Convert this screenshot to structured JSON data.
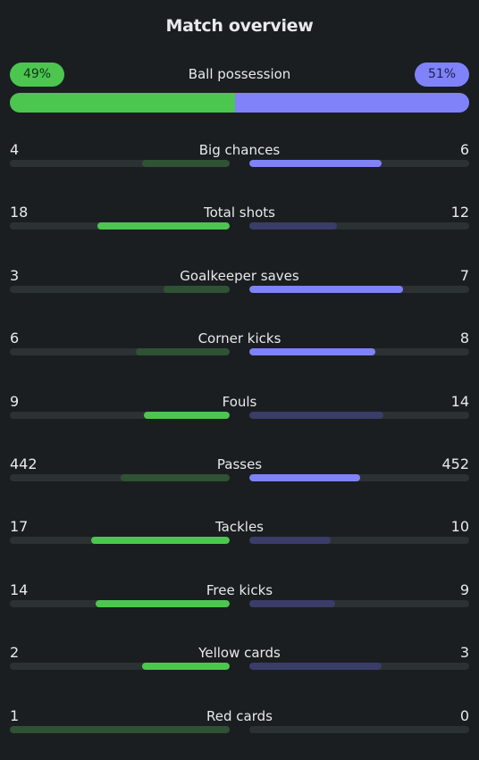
{
  "title": "Match overview",
  "colors": {
    "home": "#4cc64f",
    "home_dim": "#2f5234",
    "away": "#7f82f8",
    "away_dim": "#3a3d68",
    "track": "#2c3134"
  },
  "possession": {
    "label": "Ball possession",
    "home_label": "49%",
    "away_label": "51%",
    "home": 49,
    "away": 51
  },
  "stats": [
    {
      "name": "Big chances",
      "home": "4",
      "away": "6",
      "leader": "away"
    },
    {
      "name": "Total shots",
      "home": "18",
      "away": "12",
      "leader": "home"
    },
    {
      "name": "Goalkeeper saves",
      "home": "3",
      "away": "7",
      "leader": "away"
    },
    {
      "name": "Corner kicks",
      "home": "6",
      "away": "8",
      "leader": "away"
    },
    {
      "name": "Fouls",
      "home": "9",
      "away": "14",
      "leader": "home"
    },
    {
      "name": "Passes",
      "home": "442",
      "away": "452",
      "leader": "away"
    },
    {
      "name": "Tackles",
      "home": "17",
      "away": "10",
      "leader": "home"
    },
    {
      "name": "Free kicks",
      "home": "14",
      "away": "9",
      "leader": "home"
    },
    {
      "name": "Yellow cards",
      "home": "2",
      "away": "3",
      "leader": "home"
    },
    {
      "name": "Red cards",
      "home": "1",
      "away": "0",
      "leader": "away"
    }
  ]
}
